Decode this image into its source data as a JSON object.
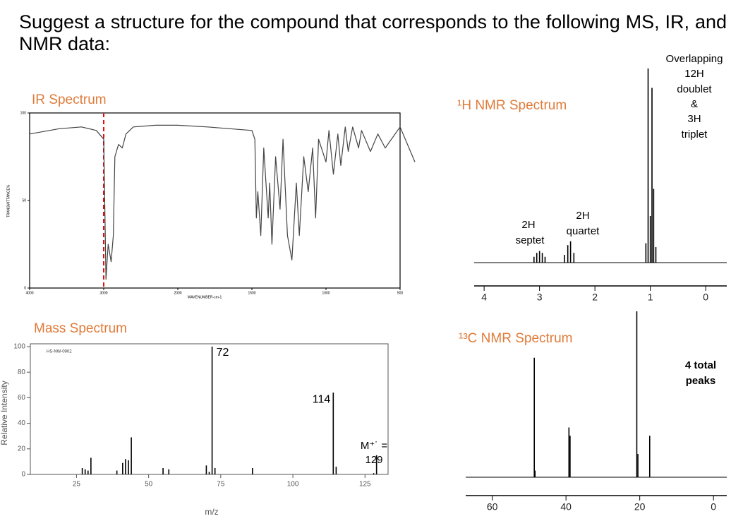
{
  "heading": "Suggest a structure for the compound that corresponds to the following MS, IR, and NMR data:",
  "ir": {
    "type": "line",
    "title": "IR Spectrum",
    "x_label": "WAVENUMBER-cm-1",
    "y_label": "TRANSMITTANCE%",
    "color": "#444444",
    "reference_color": "#e01010",
    "x": [
      4000,
      3600,
      3300,
      3100,
      3000,
      2970,
      2940,
      2900,
      2870,
      2850,
      2800,
      2750,
      2700,
      2600,
      2300,
      2000,
      1800,
      1500,
      1480,
      1470,
      1460,
      1440,
      1420,
      1390,
      1380,
      1365,
      1340,
      1310,
      1290,
      1260,
      1230,
      1200,
      1180,
      1150,
      1120,
      1090,
      1070,
      1050,
      1000,
      980,
      950,
      920,
      900,
      870,
      850,
      820,
      780,
      760,
      700,
      650,
      600,
      500,
      400
    ],
    "y": [
      88,
      91,
      92,
      90,
      85,
      5,
      25,
      15,
      30,
      75,
      82,
      80,
      88,
      92,
      93,
      93,
      92,
      90,
      85,
      40,
      55,
      30,
      80,
      40,
      60,
      25,
      75,
      45,
      85,
      30,
      16,
      60,
      30,
      75,
      55,
      80,
      40,
      85,
      72,
      90,
      65,
      88,
      70,
      92,
      78,
      92,
      80,
      90,
      78,
      88,
      80,
      92,
      72
    ],
    "reference_x": 3000,
    "xlim": [
      4000,
      400
    ],
    "ylim": [
      0,
      100
    ],
    "xticks": [
      4000,
      3000,
      2000,
      1500,
      1000,
      500
    ],
    "yticks": [
      0,
      50,
      100
    ]
  },
  "mass": {
    "type": "bar",
    "title": "Mass Spectrum",
    "id_label": "HS-NW-0902",
    "x_label": "m/z",
    "y_label": "Relative Intensity",
    "color": "#000000",
    "x": [
      27,
      28,
      29,
      30,
      39,
      41,
      42,
      43,
      44,
      55,
      57,
      70,
      71,
      72,
      73,
      86,
      114,
      115,
      128,
      129
    ],
    "values": [
      5,
      4,
      3,
      13,
      3,
      9,
      12,
      11,
      29,
      5,
      4,
      7,
      2,
      100,
      5,
      5,
      64,
      6,
      1,
      15
    ],
    "molecular_ion_label": "M⁺˙ =",
    "xlim": [
      9,
      133
    ],
    "ylim": [
      0,
      100
    ],
    "xticks": [
      25,
      50,
      75,
      100,
      125
    ],
    "yticks": [
      0,
      20,
      40,
      60,
      80,
      100
    ]
  },
  "h_nmr": {
    "type": "spectrum",
    "title": "¹H NMR Spectrum",
    "color": "#000000",
    "x": [
      3.1,
      3.05,
      3.0,
      2.95,
      2.9,
      2.55,
      2.49,
      2.44,
      2.38,
      1.08,
      1.04,
      1.0,
      0.97,
      0.94,
      0.9
    ],
    "values": [
      3,
      5,
      6,
      5,
      3,
      4,
      9,
      11,
      5,
      10,
      100,
      24,
      90,
      38,
      8
    ],
    "xlim": [
      4.18,
      -0.38
    ],
    "xticks": [
      4,
      3,
      2,
      1,
      0
    ],
    "annotations": [
      [
        "2H",
        "septet"
      ],
      [
        "2H",
        "quartet"
      ],
      [
        "Overlapping",
        "12H",
        "doublet",
        "&",
        "3H",
        "triplet"
      ]
    ]
  },
  "c_nmr": {
    "type": "spectrum",
    "title": "¹³C NMR Spectrum",
    "color": "#000000",
    "x": [
      48.6,
      48.4,
      39.2,
      38.9,
      20.8,
      20.5,
      17.3
    ],
    "values": [
      72,
      4,
      30,
      25,
      100,
      14,
      25
    ],
    "xlim": [
      67.2,
      -3.6
    ],
    "xticks": [
      60,
      40,
      20,
      0
    ],
    "annotations": [
      [
        "4 total",
        "peaks"
      ]
    ]
  }
}
